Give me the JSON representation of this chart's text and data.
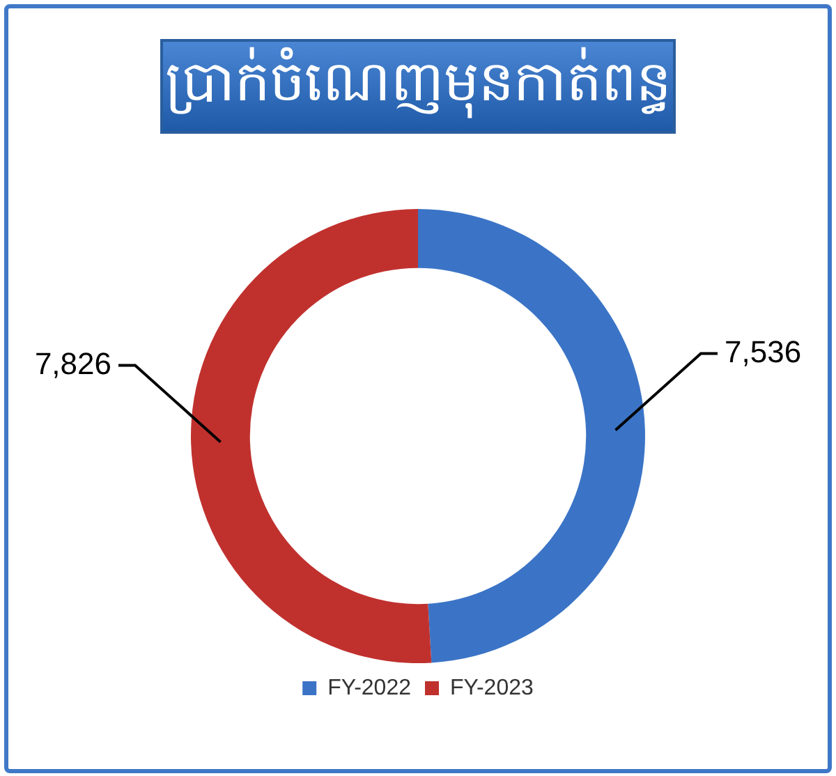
{
  "chart_data": {
    "type": "donut",
    "title": "ប្រាក់ចំណេញមុនកាត់ពន្ធ",
    "categories": [
      "FY-2022",
      "FY-2023"
    ],
    "values": [
      7536,
      7826
    ],
    "colors": [
      "#3b74c6",
      "#c0312e"
    ],
    "value_labels": [
      "7,536",
      "7,826"
    ],
    "legend": "bottom"
  }
}
